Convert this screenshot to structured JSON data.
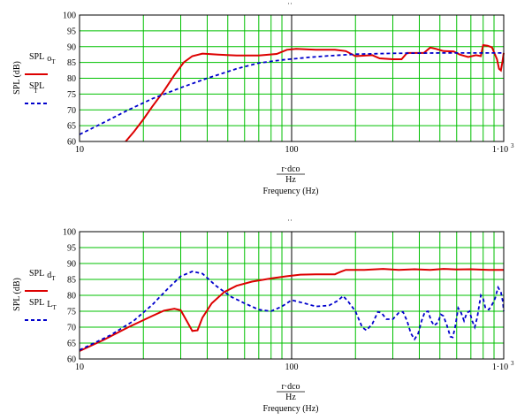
{
  "chart_data": [
    {
      "type": "line",
      "xscale": "log",
      "xlim": [
        10,
        1000
      ],
      "ylim": [
        60,
        100
      ],
      "yticks": [
        60,
        65,
        70,
        75,
        80,
        85,
        90,
        95,
        100
      ],
      "xticks": [
        "10",
        "100",
        "1·10"
      ],
      "xtick_exponent": "3",
      "ylabel": "SPL (dB)",
      "xlabel_num": "r·dco",
      "xlabel_den": "Hz",
      "xlabel": "Frequency (Hz)",
      "grid": true,
      "legend": [
        {
          "main": "SPL",
          "sub": "o",
          "subsub": "T",
          "style": "solid"
        },
        {
          "main": "SPL",
          "sub": "",
          "subsub": "T",
          "style": "dashed"
        }
      ],
      "series": [
        {
          "style": "solid",
          "color": "#dd0000",
          "points": [
            [
              16.5,
              60
            ],
            [
              18,
              63
            ],
            [
              20,
              67
            ],
            [
              22,
              71
            ],
            [
              25,
              76
            ],
            [
              28,
              81
            ],
            [
              31,
              85
            ],
            [
              34,
              87
            ],
            [
              38,
              87.8
            ],
            [
              45,
              87.5
            ],
            [
              55,
              87.2
            ],
            [
              70,
              87.2
            ],
            [
              85,
              87.7
            ],
            [
              95,
              89
            ],
            [
              105,
              89.3
            ],
            [
              130,
              89
            ],
            [
              160,
              89
            ],
            [
              180,
              88.6
            ],
            [
              200,
              87
            ],
            [
              240,
              87.3
            ],
            [
              260,
              86.3
            ],
            [
              300,
              86
            ],
            [
              330,
              86
            ],
            [
              350,
              88
            ],
            [
              380,
              88
            ],
            [
              420,
              88
            ],
            [
              450,
              89.7
            ],
            [
              480,
              89.3
            ],
            [
              520,
              88.6
            ],
            [
              580,
              88.5
            ],
            [
              620,
              87.5
            ],
            [
              680,
              86.7
            ],
            [
              740,
              87.3
            ],
            [
              780,
              87
            ],
            [
              800,
              90.5
            ],
            [
              840,
              90.3
            ],
            [
              880,
              89.8
            ],
            [
              930,
              86
            ],
            [
              950,
              83
            ],
            [
              970,
              82.5
            ],
            [
              985,
              85
            ],
            [
              1000,
              88
            ]
          ]
        },
        {
          "style": "dashed",
          "color": "#0000cc",
          "points": [
            [
              10,
              62.2
            ],
            [
              13,
              66
            ],
            [
              17,
              70
            ],
            [
              22,
              73.5
            ],
            [
              30,
              77
            ],
            [
              40,
              80
            ],
            [
              55,
              83
            ],
            [
              70,
              84.8
            ],
            [
              90,
              85.8
            ],
            [
              120,
              86.6
            ],
            [
              150,
              87.1
            ],
            [
              200,
              87.6
            ],
            [
              300,
              87.9
            ],
            [
              500,
              88
            ],
            [
              1000,
              88
            ]
          ]
        }
      ]
    },
    {
      "type": "line",
      "xscale": "log",
      "xlim": [
        10,
        1000
      ],
      "ylim": [
        60,
        100
      ],
      "yticks": [
        60,
        65,
        70,
        75,
        80,
        85,
        90,
        95,
        100
      ],
      "xticks": [
        "10",
        "100",
        "1·10"
      ],
      "xtick_exponent": "3",
      "ylabel": "SPL (dB)",
      "xlabel_num": "r·dco",
      "xlabel_den": "Hz",
      "xlabel": "Frequency (Hz)",
      "grid": true,
      "legend": [
        {
          "main": "SPL",
          "sub": "d",
          "subsub": "T",
          "style": "solid"
        },
        {
          "main": "SPL",
          "sub": "L",
          "subsub": "T",
          "style": "dashed"
        }
      ],
      "series": [
        {
          "style": "solid",
          "color": "#dd0000",
          "points": [
            [
              10,
              62.5
            ],
            [
              13,
              66
            ],
            [
              17,
              70
            ],
            [
              22,
              73.5
            ],
            [
              25,
              75.2
            ],
            [
              28,
              75.8
            ],
            [
              30,
              75.3
            ],
            [
              32,
              72
            ],
            [
              34,
              68.8
            ],
            [
              36,
              69
            ],
            [
              38,
              73
            ],
            [
              42,
              77.5
            ],
            [
              48,
              81
            ],
            [
              55,
              83
            ],
            [
              65,
              84.3
            ],
            [
              80,
              85.3
            ],
            [
              95,
              86
            ],
            [
              110,
              86.5
            ],
            [
              130,
              86.6
            ],
            [
              160,
              86.6
            ],
            [
              170,
              87.4
            ],
            [
              180,
              88
            ],
            [
              220,
              88
            ],
            [
              270,
              88.3
            ],
            [
              320,
              88
            ],
            [
              380,
              88.2
            ],
            [
              450,
              88
            ],
            [
              520,
              88.3
            ],
            [
              600,
              88.1
            ],
            [
              700,
              88.2
            ],
            [
              850,
              88
            ],
            [
              1000,
              88
            ]
          ]
        },
        {
          "style": "dashed",
          "color": "#0000cc",
          "points": [
            [
              10,
              62.8
            ],
            [
              14,
              67.5
            ],
            [
              18,
              72
            ],
            [
              22,
              77
            ],
            [
              26,
              82
            ],
            [
              30,
              86
            ],
            [
              34,
              87.5
            ],
            [
              38,
              86.8
            ],
            [
              44,
              83
            ],
            [
              52,
              79.5
            ],
            [
              60,
              77.5
            ],
            [
              70,
              75.5
            ],
            [
              80,
              75
            ],
            [
              90,
              76.5
            ],
            [
              100,
              78.5
            ],
            [
              115,
              77.5
            ],
            [
              130,
              76.5
            ],
            [
              150,
              76.8
            ],
            [
              165,
              78.3
            ],
            [
              175,
              79.8
            ],
            [
              185,
              78
            ],
            [
              200,
              75
            ],
            [
              215,
              70
            ],
            [
              225,
              69
            ],
            [
              240,
              71
            ],
            [
              255,
              74.8
            ],
            [
              265,
              74.5
            ],
            [
              280,
              72.5
            ],
            [
              300,
              72.5
            ],
            [
              320,
              74.5
            ],
            [
              335,
              74.8
            ],
            [
              350,
              72
            ],
            [
              365,
              68
            ],
            [
              380,
              66.2
            ],
            [
              395,
              68
            ],
            [
              410,
              72
            ],
            [
              425,
              74.8
            ],
            [
              440,
              75
            ],
            [
              455,
              72
            ],
            [
              470,
              70.5
            ],
            [
              490,
              71.5
            ],
            [
              505,
              74
            ],
            [
              520,
              73.5
            ],
            [
              540,
              70.5
            ],
            [
              560,
              67
            ],
            [
              575,
              66.8
            ],
            [
              590,
              70
            ],
            [
              610,
              76
            ],
            [
              630,
              74.5
            ],
            [
              650,
              72
            ],
            [
              670,
              74.5
            ],
            [
              690,
              75
            ],
            [
              710,
              72
            ],
            [
              730,
              70
            ],
            [
              750,
              73
            ],
            [
              780,
              80
            ],
            [
              800,
              79
            ],
            [
              820,
              76
            ],
            [
              850,
              75.5
            ],
            [
              880,
              77
            ],
            [
              910,
              79
            ],
            [
              940,
              82.5
            ],
            [
              970,
              81
            ],
            [
              990,
              78
            ],
            [
              1000,
              75
            ]
          ]
        }
      ]
    }
  ]
}
